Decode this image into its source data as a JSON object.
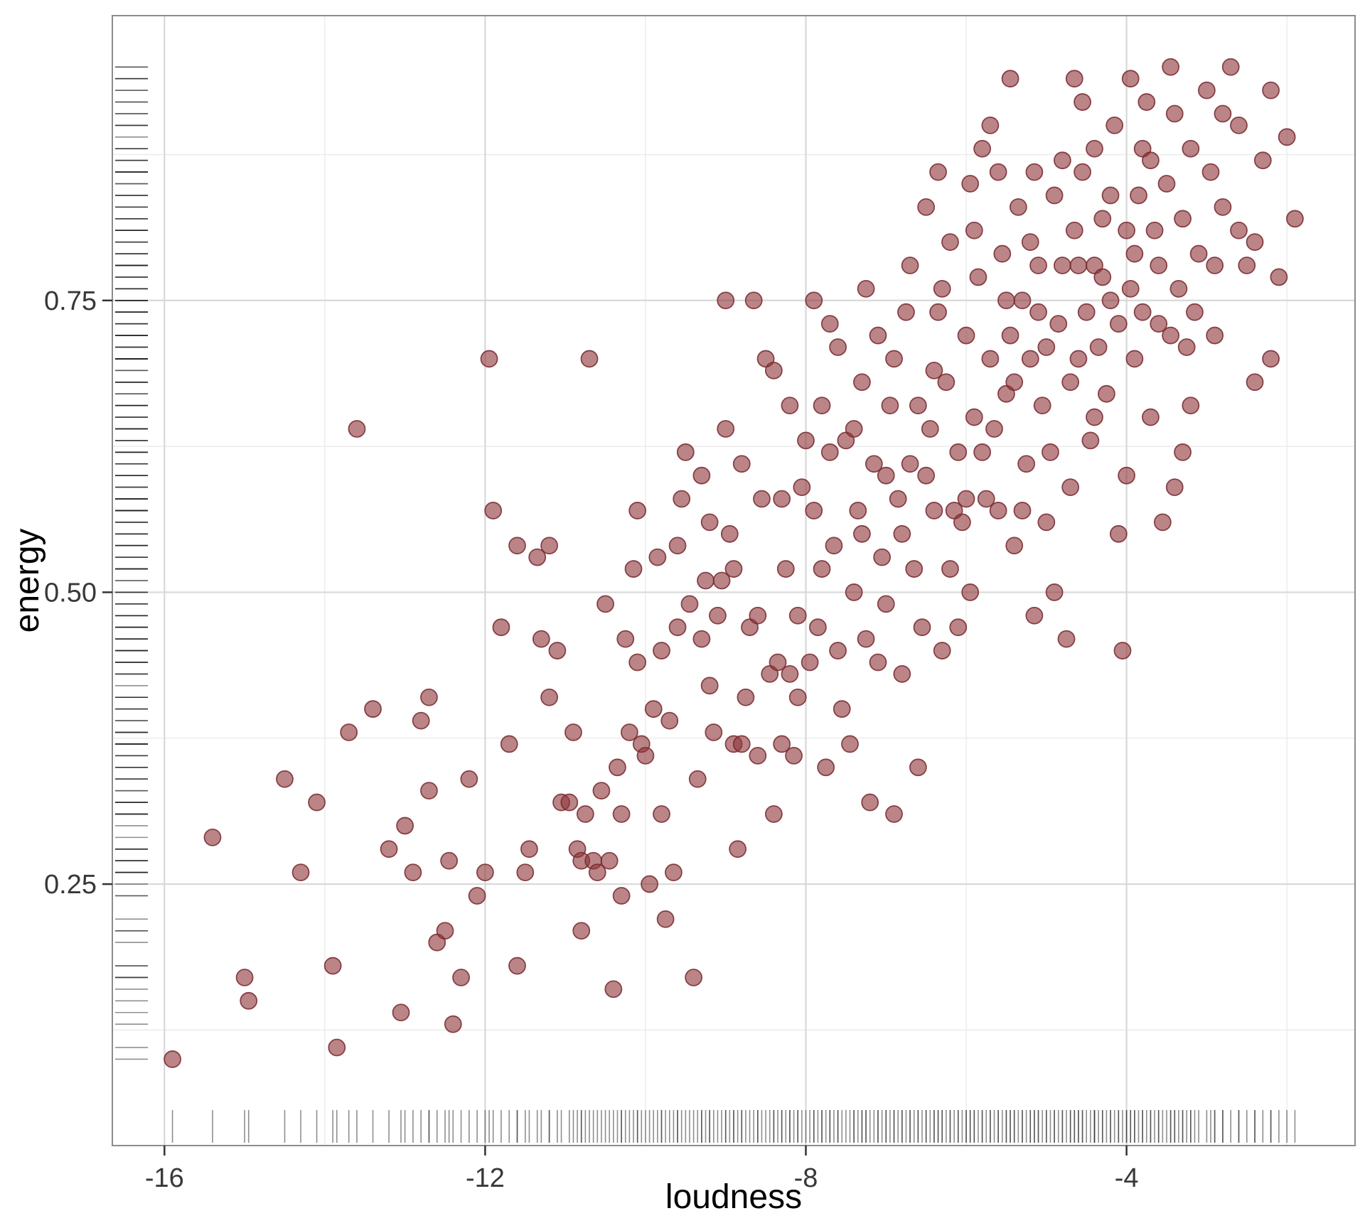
{
  "chart_data": {
    "type": "scatter",
    "title": "",
    "xlabel": "loudness",
    "ylabel": "energy",
    "x_ticks": [
      -16,
      -12,
      -8,
      -4
    ],
    "x_tick_labels": [
      "-16",
      "-12",
      "-8",
      "-4"
    ],
    "y_ticks": [
      0.25,
      0.5,
      0.75
    ],
    "y_tick_labels": [
      "0.25",
      "0.50",
      "0.75"
    ],
    "x_minor_ticks": [
      -14,
      -10,
      -6,
      -2
    ],
    "y_minor_ticks": [
      0.125,
      0.375,
      0.625,
      0.875
    ],
    "x_domain": [
      -16.65,
      -1.15
    ],
    "y_domain": [
      0.026,
      0.994
    ],
    "grid": true,
    "legend_position": "none",
    "point_style": {
      "fill": "#8e3338",
      "stroke": "#772a2f",
      "opacity": 0.6,
      "radius": 11.5
    },
    "rug": {
      "axes": [
        "x",
        "y"
      ],
      "color": "#1f1f1f",
      "opacity": 0.5
    },
    "points": [
      [
        -15.9,
        0.1
      ],
      [
        -15.4,
        0.29
      ],
      [
        -15.0,
        0.17
      ],
      [
        -14.95,
        0.15
      ],
      [
        -14.5,
        0.34
      ],
      [
        -14.3,
        0.26
      ],
      [
        -14.1,
        0.32
      ],
      [
        -13.9,
        0.18
      ],
      [
        -13.85,
        0.11
      ],
      [
        -13.7,
        0.38
      ],
      [
        -13.6,
        0.64
      ],
      [
        -13.4,
        0.4
      ],
      [
        -13.2,
        0.28
      ],
      [
        -13.05,
        0.14
      ],
      [
        -12.9,
        0.26
      ],
      [
        -12.8,
        0.39
      ],
      [
        -12.7,
        0.33
      ],
      [
        -12.6,
        0.2
      ],
      [
        -12.5,
        0.21
      ],
      [
        -12.45,
        0.27
      ],
      [
        -12.3,
        0.17
      ],
      [
        -12.2,
        0.34
      ],
      [
        -12.1,
        0.24
      ],
      [
        -12.0,
        0.26
      ],
      [
        -11.95,
        0.7
      ],
      [
        -11.9,
        0.57
      ],
      [
        -11.8,
        0.47
      ],
      [
        -11.7,
        0.37
      ],
      [
        -11.6,
        0.54
      ],
      [
        -11.5,
        0.26
      ],
      [
        -11.45,
        0.28
      ],
      [
        -11.35,
        0.53
      ],
      [
        -11.3,
        0.46
      ],
      [
        -11.2,
        0.54
      ],
      [
        -11.1,
        0.45
      ],
      [
        -11.05,
        0.32
      ],
      [
        -10.95,
        0.32
      ],
      [
        -10.9,
        0.38
      ],
      [
        -10.85,
        0.28
      ],
      [
        -10.8,
        0.27
      ],
      [
        -10.75,
        0.31
      ],
      [
        -10.7,
        0.7
      ],
      [
        -10.65,
        0.27
      ],
      [
        -10.6,
        0.26
      ],
      [
        -10.55,
        0.33
      ],
      [
        -10.5,
        0.49
      ],
      [
        -10.45,
        0.27
      ],
      [
        -10.4,
        0.16
      ],
      [
        -10.35,
        0.35
      ],
      [
        -10.3,
        0.31
      ],
      [
        -10.25,
        0.46
      ],
      [
        -10.2,
        0.38
      ],
      [
        -10.15,
        0.52
      ],
      [
        -10.1,
        0.44
      ],
      [
        -10.05,
        0.37
      ],
      [
        -10.0,
        0.36
      ],
      [
        -9.95,
        0.25
      ],
      [
        -9.9,
        0.4
      ],
      [
        -9.85,
        0.53
      ],
      [
        -9.8,
        0.45
      ],
      [
        -9.75,
        0.22
      ],
      [
        -9.7,
        0.39
      ],
      [
        -9.65,
        0.26
      ],
      [
        -9.6,
        0.47
      ],
      [
        -9.55,
        0.58
      ],
      [
        -9.5,
        0.62
      ],
      [
        -9.45,
        0.49
      ],
      [
        -9.4,
        0.17
      ],
      [
        -9.35,
        0.34
      ],
      [
        -9.3,
        0.46
      ],
      [
        -9.25,
        0.51
      ],
      [
        -9.2,
        0.56
      ],
      [
        -9.15,
        0.38
      ],
      [
        -9.1,
        0.48
      ],
      [
        -9.05,
        0.51
      ],
      [
        -9.0,
        0.64
      ],
      [
        -8.95,
        0.55
      ],
      [
        -8.9,
        0.37
      ],
      [
        -8.85,
        0.28
      ],
      [
        -8.8,
        0.37
      ],
      [
        -8.75,
        0.41
      ],
      [
        -8.7,
        0.47
      ],
      [
        -8.65,
        0.75
      ],
      [
        -8.6,
        0.36
      ],
      [
        -8.55,
        0.58
      ],
      [
        -8.5,
        0.7
      ],
      [
        -8.45,
        0.43
      ],
      [
        -8.4,
        0.31
      ],
      [
        -8.35,
        0.44
      ],
      [
        -8.3,
        0.37
      ],
      [
        -8.25,
        0.52
      ],
      [
        -8.2,
        0.43
      ],
      [
        -8.15,
        0.36
      ],
      [
        -8.1,
        0.48
      ],
      [
        -8.05,
        0.59
      ],
      [
        -8.0,
        0.63
      ],
      [
        -7.95,
        0.44
      ],
      [
        -7.9,
        0.75
      ],
      [
        -7.85,
        0.47
      ],
      [
        -7.8,
        0.52
      ],
      [
        -7.75,
        0.35
      ],
      [
        -7.7,
        0.62
      ],
      [
        -7.65,
        0.54
      ],
      [
        -7.6,
        0.71
      ],
      [
        -7.55,
        0.4
      ],
      [
        -7.5,
        0.63
      ],
      [
        -7.45,
        0.37
      ],
      [
        -7.4,
        0.5
      ],
      [
        -7.35,
        0.57
      ],
      [
        -7.3,
        0.68
      ],
      [
        -7.25,
        0.46
      ],
      [
        -7.2,
        0.32
      ],
      [
        -7.15,
        0.61
      ],
      [
        -7.1,
        0.72
      ],
      [
        -7.05,
        0.53
      ],
      [
        -7.0,
        0.49
      ],
      [
        -6.95,
        0.66
      ],
      [
        -6.9,
        0.31
      ],
      [
        -6.85,
        0.58
      ],
      [
        -6.8,
        0.43
      ],
      [
        -6.75,
        0.74
      ],
      [
        -6.7,
        0.61
      ],
      [
        -6.65,
        0.52
      ],
      [
        -6.6,
        0.35
      ],
      [
        -6.55,
        0.47
      ],
      [
        -6.5,
        0.83
      ],
      [
        -6.45,
        0.64
      ],
      [
        -6.4,
        0.57
      ],
      [
        -6.35,
        0.74
      ],
      [
        -6.3,
        0.45
      ],
      [
        -6.25,
        0.68
      ],
      [
        -6.2,
        0.8
      ],
      [
        -6.15,
        0.57
      ],
      [
        -6.1,
        0.62
      ],
      [
        -6.05,
        0.56
      ],
      [
        -6.0,
        0.72
      ],
      [
        -5.95,
        0.5
      ],
      [
        -5.9,
        0.65
      ],
      [
        -5.85,
        0.77
      ],
      [
        -5.8,
        0.88
      ],
      [
        -5.75,
        0.58
      ],
      [
        -5.7,
        0.7
      ],
      [
        -5.65,
        0.64
      ],
      [
        -5.6,
        0.86
      ],
      [
        -5.55,
        0.79
      ],
      [
        -5.5,
        0.67
      ],
      [
        -5.45,
        0.72
      ],
      [
        -5.4,
        0.54
      ],
      [
        -5.35,
        0.83
      ],
      [
        -5.3,
        0.75
      ],
      [
        -5.25,
        0.61
      ],
      [
        -5.2,
        0.7
      ],
      [
        -5.15,
        0.48
      ],
      [
        -5.1,
        0.78
      ],
      [
        -5.05,
        0.66
      ],
      [
        -5.0,
        0.71
      ],
      [
        -4.95,
        0.62
      ],
      [
        -4.9,
        0.84
      ],
      [
        -4.85,
        0.73
      ],
      [
        -4.8,
        0.78
      ],
      [
        -4.75,
        0.46
      ],
      [
        -4.7,
        0.68
      ],
      [
        -4.65,
        0.81
      ],
      [
        -4.6,
        0.78
      ],
      [
        -4.55,
        0.86
      ],
      [
        -4.5,
        0.74
      ],
      [
        -4.45,
        0.63
      ],
      [
        -4.4,
        0.78
      ],
      [
        -4.35,
        0.71
      ],
      [
        -4.3,
        0.82
      ],
      [
        -4.25,
        0.67
      ],
      [
        -4.2,
        0.75
      ],
      [
        -4.15,
        0.9
      ],
      [
        -4.1,
        0.73
      ],
      [
        -4.05,
        0.45
      ],
      [
        -4.0,
        0.81
      ],
      [
        -3.95,
        0.76
      ],
      [
        -3.9,
        0.7
      ],
      [
        -3.85,
        0.84
      ],
      [
        -3.8,
        0.74
      ],
      [
        -3.75,
        0.92
      ],
      [
        -3.7,
        0.65
      ],
      [
        -3.65,
        0.81
      ],
      [
        -3.6,
        0.78
      ],
      [
        -3.55,
        0.56
      ],
      [
        -3.5,
        0.85
      ],
      [
        -3.45,
        0.72
      ],
      [
        -3.4,
        0.91
      ],
      [
        -3.35,
        0.76
      ],
      [
        -3.3,
        0.82
      ],
      [
        -3.25,
        0.71
      ],
      [
        -3.2,
        0.88
      ],
      [
        -3.1,
        0.79
      ],
      [
        -3.0,
        0.93
      ],
      [
        -2.95,
        0.86
      ],
      [
        -2.9,
        0.78
      ],
      [
        -2.8,
        0.83
      ],
      [
        -2.7,
        0.95
      ],
      [
        -2.6,
        0.9
      ],
      [
        -2.5,
        0.78
      ],
      [
        -2.4,
        0.68
      ],
      [
        -2.3,
        0.87
      ],
      [
        -2.2,
        0.93
      ],
      [
        -2.1,
        0.77
      ],
      [
        -2.0,
        0.89
      ],
      [
        -1.9,
        0.82
      ],
      [
        -9.0,
        0.75
      ],
      [
        -8.9,
        0.52
      ],
      [
        -8.3,
        0.58
      ],
      [
        -7.8,
        0.66
      ],
      [
        -7.6,
        0.45
      ],
      [
        -7.3,
        0.55
      ],
      [
        -7.0,
        0.6
      ],
      [
        -6.9,
        0.7
      ],
      [
        -6.6,
        0.66
      ],
      [
        -6.4,
        0.69
      ],
      [
        -6.2,
        0.52
      ],
      [
        -6.0,
        0.58
      ],
      [
        -5.8,
        0.62
      ],
      [
        -5.6,
        0.57
      ],
      [
        -5.4,
        0.68
      ],
      [
        -5.2,
        0.8
      ],
      [
        -5.0,
        0.56
      ],
      [
        -4.8,
        0.87
      ],
      [
        -4.6,
        0.7
      ],
      [
        -4.4,
        0.65
      ],
      [
        -4.2,
        0.84
      ],
      [
        -4.0,
        0.6
      ],
      [
        -3.8,
        0.88
      ],
      [
        -3.6,
        0.73
      ],
      [
        -3.4,
        0.59
      ],
      [
        -3.2,
        0.66
      ],
      [
        -2.9,
        0.72
      ],
      [
        -2.6,
        0.81
      ],
      [
        -8.6,
        0.48
      ],
      [
        -8.1,
        0.41
      ],
      [
        -7.9,
        0.57
      ],
      [
        -7.4,
        0.64
      ],
      [
        -6.8,
        0.55
      ],
      [
        -6.3,
        0.76
      ],
      [
        -5.9,
        0.81
      ],
      [
        -5.5,
        0.75
      ],
      [
        -5.1,
        0.74
      ],
      [
        -4.7,
        0.59
      ],
      [
        -4.3,
        0.77
      ],
      [
        -3.9,
        0.79
      ],
      [
        -10.8,
        0.21
      ],
      [
        -11.6,
        0.18
      ],
      [
        -12.4,
        0.13
      ],
      [
        -13.0,
        0.3
      ],
      [
        -9.8,
        0.31
      ],
      [
        -9.2,
        0.42
      ],
      [
        -10.3,
        0.24
      ],
      [
        -12.7,
        0.41
      ],
      [
        -8.8,
        0.61
      ],
      [
        -7.1,
        0.44
      ],
      [
        -6.1,
        0.47
      ],
      [
        -5.3,
        0.57
      ],
      [
        -4.9,
        0.5
      ],
      [
        -4.1,
        0.55
      ],
      [
        -3.3,
        0.62
      ],
      [
        -2.4,
        0.8
      ],
      [
        -6.7,
        0.78
      ],
      [
        -5.7,
        0.9
      ],
      [
        -4.4,
        0.88
      ],
      [
        -3.7,
        0.87
      ],
      [
        -2.8,
        0.91
      ],
      [
        -7.7,
        0.73
      ],
      [
        -8.4,
        0.69
      ],
      [
        -9.6,
        0.54
      ],
      [
        -10.1,
        0.57
      ],
      [
        -11.2,
        0.41
      ],
      [
        -6.5,
        0.6
      ],
      [
        -5.95,
        0.85
      ],
      [
        -5.15,
        0.86
      ],
      [
        -4.55,
        0.92
      ],
      [
        -3.15,
        0.74
      ],
      [
        -2.2,
        0.7
      ],
      [
        -9.3,
        0.6
      ],
      [
        -8.2,
        0.66
      ],
      [
        -7.25,
        0.76
      ],
      [
        -6.35,
        0.86
      ],
      [
        -5.45,
        0.94
      ],
      [
        -4.65,
        0.94
      ],
      [
        -3.95,
        0.94
      ],
      [
        -3.45,
        0.95
      ]
    ]
  }
}
